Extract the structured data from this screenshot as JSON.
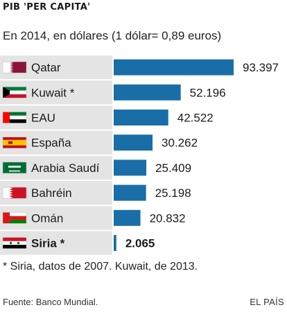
{
  "header": {
    "title": "PIB 'PER CAPITA'",
    "subtitle": "En 2014, en dólares (1 dólar= 0,89 euros)"
  },
  "chart_data": {
    "type": "bar",
    "orientation": "horizontal",
    "categories": [
      "Qatar",
      "Kuwait *",
      "EAU",
      "España",
      "Arabia Saudí",
      "Bahréin",
      "Omán",
      "Siria *"
    ],
    "value_labels": [
      "93.397",
      "52.196",
      "42.522",
      "30.262",
      "25.409",
      "25.198",
      "20.832",
      "2.065"
    ],
    "series": [
      {
        "values": [
          93397,
          52196,
          42522,
          30262,
          25409,
          25198,
          20832,
          2065
        ]
      }
    ],
    "highlighted_category": "Siria *",
    "bar_color": "#1a6ea8",
    "xlim": [
      0,
      93397
    ]
  },
  "flags": [
    "qatar-flag-icon",
    "kuwait-flag-icon",
    "uae-flag-icon",
    "spain-flag-icon",
    "saudi-arabia-flag-icon",
    "bahrain-flag-icon",
    "oman-flag-icon",
    "syria-flag-icon"
  ],
  "footer": {
    "footnote": "* Siria, datos de 2007. Kuwait, de 2013.",
    "source": "Fuente: Banco Mundial.",
    "brand": "EL PAÍS"
  }
}
